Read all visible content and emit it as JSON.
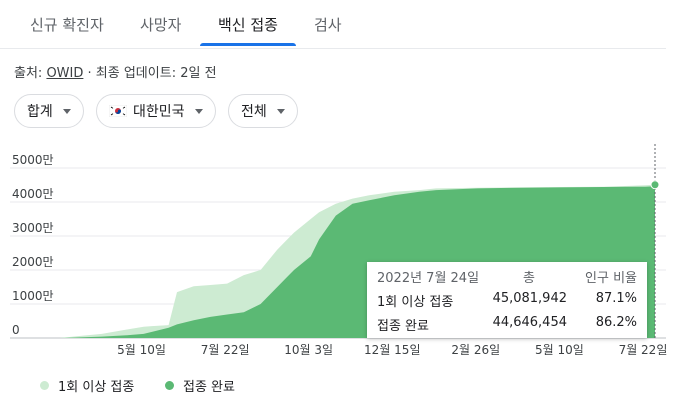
{
  "tabs": [
    {
      "label": "신규 확진자",
      "active": false
    },
    {
      "label": "사망자",
      "active": false
    },
    {
      "label": "백신 접종",
      "active": true
    },
    {
      "label": "검사",
      "active": false
    }
  ],
  "source": {
    "prefix": "출처:",
    "link": "OWID",
    "suffix": "· 최종 업데이트: 2일 전"
  },
  "filters": {
    "total": "합계",
    "country": "대한민국",
    "range": "전체"
  },
  "tooltip": {
    "date": "2022년 7월 24일",
    "col_total": "총",
    "col_pct": "인구 비율",
    "rows": [
      {
        "label": "1회 이상 접종",
        "total": "45,081,942",
        "pct": "87.1%"
      },
      {
        "label": "접종 완료",
        "total": "44,646,454",
        "pct": "86.2%"
      }
    ]
  },
  "legend": [
    {
      "label": "1회 이상 접종",
      "color": "#cdebd2"
    },
    {
      "label": "접종 완료",
      "color": "#5bb974"
    }
  ],
  "colors": {
    "accent": "#1a73e8",
    "one_dose": "#cdebd2",
    "fully": "#5bb974"
  },
  "chart_data": {
    "type": "area",
    "ylim": [
      0,
      5000
    ],
    "y_ticks": [
      0,
      1000,
      2000,
      3000,
      4000,
      5000
    ],
    "y_tick_labels": [
      "0",
      "1000만",
      "2000만",
      "3000만",
      "4000만",
      "5000만"
    ],
    "x_ticks": [
      {
        "label": "5월 10일",
        "t": 0.1
      },
      {
        "label": "7월 22일",
        "t": 0.2
      },
      {
        "label": "10월 3일",
        "t": 0.3
      },
      {
        "label": "12월 15일",
        "t": 0.4
      },
      {
        "label": "2월 26일",
        "t": 0.5
      },
      {
        "label": "5월 10일",
        "t": 0.6
      },
      {
        "label": "7월 22일",
        "t": 0.7
      }
    ],
    "series": [
      {
        "name": "1회 이상 접종",
        "x": [
          0,
          0.02,
          0.05,
          0.08,
          0.1,
          0.11,
          0.13,
          0.14,
          0.16,
          0.18,
          0.2,
          0.22,
          0.24,
          0.26,
          0.27,
          0.28,
          0.3,
          0.31,
          0.33,
          0.35,
          0.37,
          0.4,
          0.43,
          0.45,
          0.5,
          0.55,
          0.6,
          0.65,
          0.7,
          0.712
        ],
        "values": [
          0,
          50,
          120,
          250,
          330,
          350,
          380,
          1350,
          1520,
          1560,
          1600,
          1850,
          2000,
          2600,
          2850,
          3100,
          3500,
          3700,
          3950,
          4100,
          4200,
          4300,
          4350,
          4400,
          4420,
          4430,
          4440,
          4450,
          4490,
          4508
        ]
      },
      {
        "name": "접종 완료",
        "x": [
          0,
          0.02,
          0.05,
          0.08,
          0.1,
          0.11,
          0.13,
          0.14,
          0.16,
          0.18,
          0.2,
          0.22,
          0.24,
          0.26,
          0.27,
          0.28,
          0.3,
          0.31,
          0.33,
          0.35,
          0.37,
          0.4,
          0.43,
          0.45,
          0.5,
          0.55,
          0.6,
          0.65,
          0.7,
          0.712
        ],
        "values": [
          0,
          15,
          40,
          80,
          120,
          180,
          300,
          400,
          520,
          620,
          690,
          760,
          1000,
          1500,
          1750,
          2000,
          2400,
          2900,
          3600,
          3950,
          4050,
          4200,
          4300,
          4350,
          4400,
          4420,
          4430,
          4440,
          4450,
          4464
        ]
      }
    ]
  }
}
